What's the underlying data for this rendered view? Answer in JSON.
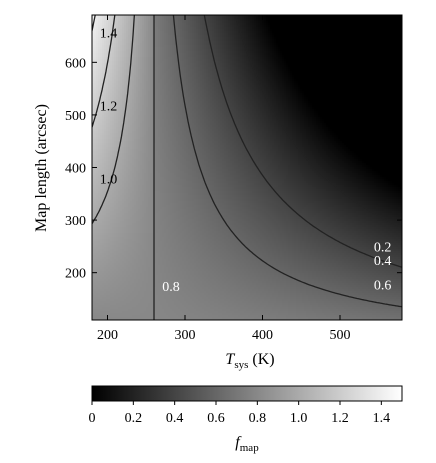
{
  "chart_data": {
    "type": "heatmap",
    "title": "",
    "xlabel_main": "T",
    "xlabel_sub": "sys",
    "xlabel_unit": " (K)",
    "ylabel": "Map length (arcsec)",
    "xlim": [
      180,
      580
    ],
    "ylim": [
      110,
      690
    ],
    "xticks": [
      200,
      300,
      400,
      500
    ],
    "yticks": [
      200,
      300,
      400,
      500,
      600
    ],
    "colorbar": {
      "label_main": "f",
      "label_sub": "map",
      "range": [
        0,
        1.5
      ],
      "ticks": [
        "0",
        "0.2",
        "0.4",
        "0.6",
        "0.8",
        "1.0",
        "1.2",
        "1.4"
      ],
      "tick_values": [
        0,
        0.2,
        0.4,
        0.6,
        0.8,
        1.0,
        1.2,
        1.4
      ],
      "colormap": "gray"
    },
    "discontinuity_x": 260,
    "contours": [
      {
        "level": 0.2,
        "label": "0.2",
        "label_at": [
          555,
          240
        ]
      },
      {
        "level": 0.4,
        "label": "0.4",
        "label_at": [
          555,
          215
        ]
      },
      {
        "level": 0.6,
        "label": "0.6",
        "label_at": [
          555,
          168
        ]
      },
      {
        "level": 0.8,
        "label": "0.8",
        "label_at": [
          282,
          165
        ]
      },
      {
        "level": 1.0,
        "label": "1.0",
        "label_at": [
          190,
          370
        ]
      },
      {
        "level": 1.2,
        "label": "1.2",
        "label_at": [
          190,
          508
        ]
      },
      {
        "level": 1.4,
        "label": "1.4",
        "label_at": [
          190,
          647
        ]
      }
    ]
  }
}
